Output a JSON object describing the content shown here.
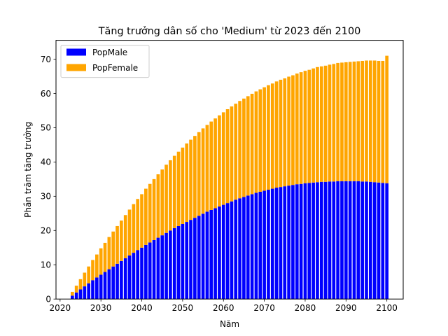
{
  "chart_data": {
    "type": "bar",
    "stacked": true,
    "title": "Tăng trưởng dân số cho 'Medium' từ 2023 đến 2100",
    "xlabel": "Năm",
    "ylabel": "Phần trăm tăng trưởng",
    "xlim": [
      2019,
      2104
    ],
    "ylim": [
      0,
      75.5
    ],
    "xticks": [
      2020,
      2030,
      2040,
      2050,
      2060,
      2070,
      2080,
      2090,
      2100
    ],
    "yticks": [
      0,
      10,
      20,
      30,
      40,
      50,
      60,
      70
    ],
    "grid": false,
    "legend_position": "upper-left",
    "x": [
      2023,
      2024,
      2025,
      2026,
      2027,
      2028,
      2029,
      2030,
      2031,
      2032,
      2033,
      2034,
      2035,
      2036,
      2037,
      2038,
      2039,
      2040,
      2041,
      2042,
      2043,
      2044,
      2045,
      2046,
      2047,
      2048,
      2049,
      2050,
      2051,
      2052,
      2053,
      2054,
      2055,
      2056,
      2057,
      2058,
      2059,
      2060,
      2061,
      2062,
      2063,
      2064,
      2065,
      2066,
      2067,
      2068,
      2069,
      2070,
      2071,
      2072,
      2073,
      2074,
      2075,
      2076,
      2077,
      2078,
      2079,
      2080,
      2081,
      2082,
      2083,
      2084,
      2085,
      2086,
      2087,
      2088,
      2089,
      2090,
      2091,
      2092,
      2093,
      2094,
      2095,
      2096,
      2097,
      2098,
      2099,
      2100
    ],
    "series": [
      {
        "name": "PopMale",
        "color": "#0000ff",
        "values": [
          1.0,
          1.9,
          2.8,
          3.7,
          4.6,
          5.5,
          6.3,
          7.1,
          7.9,
          8.7,
          9.5,
          10.3,
          11.1,
          11.9,
          12.7,
          13.5,
          14.3,
          15.0,
          15.8,
          16.5,
          17.2,
          17.9,
          18.6,
          19.3,
          20.0,
          20.7,
          21.3,
          21.9,
          22.5,
          23.1,
          23.7,
          24.3,
          24.9,
          25.5,
          26.0,
          26.5,
          27.0,
          27.5,
          28.0,
          28.5,
          29.0,
          29.4,
          29.8,
          30.2,
          30.6,
          31.0,
          31.3,
          31.6,
          31.9,
          32.2,
          32.5,
          32.7,
          32.9,
          33.1,
          33.3,
          33.5,
          33.6,
          33.8,
          33.9,
          34.0,
          34.1,
          34.2,
          34.2,
          34.3,
          34.3,
          34.4,
          34.4,
          34.4,
          34.4,
          34.4,
          34.4,
          34.3,
          34.3,
          34.2,
          34.1,
          34.0,
          33.9,
          33.8
        ]
      },
      {
        "name": "PopFemale",
        "color": "#ffa500",
        "values": [
          1.1,
          2.0,
          3.0,
          4.0,
          4.9,
          5.9,
          6.7,
          7.7,
          8.5,
          9.4,
          10.2,
          11.0,
          11.8,
          12.6,
          13.4,
          14.2,
          14.9,
          15.6,
          16.4,
          17.1,
          17.8,
          18.5,
          19.2,
          19.9,
          20.5,
          21.1,
          21.7,
          22.3,
          22.9,
          23.4,
          23.9,
          24.4,
          24.9,
          25.3,
          25.8,
          26.2,
          26.6,
          27.0,
          27.4,
          27.7,
          28.0,
          28.4,
          28.7,
          29.0,
          29.3,
          29.6,
          29.9,
          30.2,
          30.5,
          30.7,
          31.0,
          31.3,
          31.5,
          31.8,
          32.0,
          32.3,
          32.6,
          32.8,
          33.0,
          33.3,
          33.6,
          33.7,
          33.9,
          34.1,
          34.3,
          34.5,
          34.6,
          34.7,
          34.8,
          34.9,
          35.0,
          35.2,
          35.3,
          35.4,
          35.5,
          35.5,
          35.6,
          37.2
        ]
      }
    ]
  }
}
